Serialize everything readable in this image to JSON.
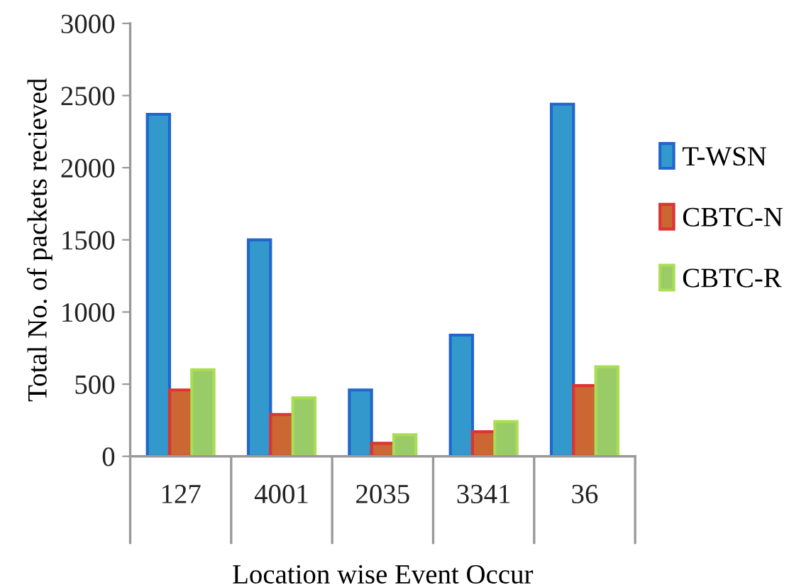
{
  "chart_data": {
    "type": "bar",
    "xlabel": "Location wise Event Occur",
    "ylabel": "Total No. of packets recieved",
    "categories": [
      "127",
      "4001",
      "2035",
      "3341",
      "36"
    ],
    "series": [
      {
        "name": "T-WSN",
        "color": "#3399cc",
        "values": [
          2370,
          1500,
          460,
          840,
          2440
        ]
      },
      {
        "name": "CBTC-N",
        "color": "#cc6633",
        "values": [
          460,
          290,
          90,
          170,
          490
        ]
      },
      {
        "name": "CBTC-R",
        "color": "#99cc66",
        "values": [
          600,
          405,
          150,
          240,
          620
        ]
      }
    ],
    "ylim": [
      0,
      3000
    ],
    "yticks": [
      0,
      500,
      1000,
      1500,
      2000,
      2500,
      3000
    ],
    "grid": false,
    "legend": "right"
  }
}
